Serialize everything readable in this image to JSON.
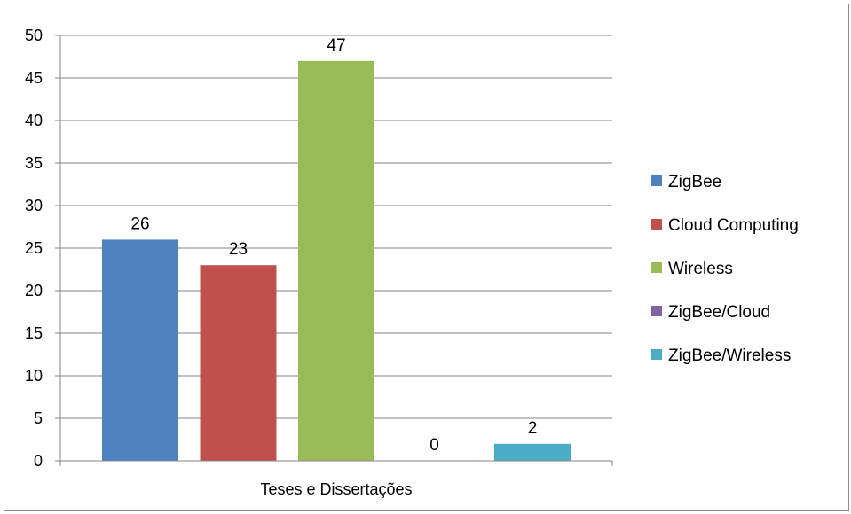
{
  "chart_data": {
    "type": "bar",
    "categories": [
      "Teses e Dissertações"
    ],
    "series": [
      {
        "name": "ZigBee",
        "values": [
          26
        ],
        "color": "#4F81BD"
      },
      {
        "name": "Cloud Computing",
        "values": [
          23
        ],
        "color": "#C0504D"
      },
      {
        "name": "Wireless",
        "values": [
          47
        ],
        "color": "#9BBB59"
      },
      {
        "name": "ZigBee/Cloud",
        "values": [
          0
        ],
        "color": "#8064A2"
      },
      {
        "name": "ZigBee/Wireless",
        "values": [
          2
        ],
        "color": "#4BACC6"
      }
    ],
    "title": "",
    "xlabel": "",
    "ylabel": "",
    "ylim": [
      0,
      50
    ],
    "yticks": [
      0,
      5,
      10,
      15,
      20,
      25,
      30,
      35,
      40,
      45,
      50
    ],
    "grid": true,
    "legend": "right",
    "data_labels": true
  }
}
